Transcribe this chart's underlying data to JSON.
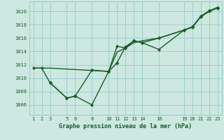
{
  "bg_color": "#cce8e0",
  "grid_color": "#99cccc",
  "line_color": "#1a5c2a",
  "xlim": [
    0.5,
    23.5
  ],
  "ylim": [
    1004.5,
    1021.5
  ],
  "yticks": [
    1006,
    1008,
    1010,
    1012,
    1014,
    1016,
    1018,
    1020
  ],
  "x_ticks": [
    1,
    2,
    3,
    5,
    6,
    8,
    10,
    11,
    12,
    13,
    14,
    16,
    19,
    20,
    21,
    22,
    23
  ],
  "xlabel": "Graphe pression niveau de la mer (hPa)",
  "series": [
    {
      "x": [
        1,
        3,
        10,
        11,
        12,
        13,
        14,
        16,
        19,
        20,
        21,
        22,
        23
      ],
      "y": [
        1011.5,
        1011.5,
        1011.0,
        1013.9,
        1014.5,
        1015.3,
        1015.6,
        1016.0,
        1017.2,
        1017.7,
        1019.2,
        1020.0,
        1020.6
      ],
      "marker": null,
      "markersize": 0,
      "linewidth": 1.0
    },
    {
      "x": [
        1,
        2,
        3,
        5,
        6,
        8,
        10,
        11,
        12,
        13,
        14,
        16,
        19,
        20,
        21,
        22,
        23
      ],
      "y": [
        1011.5,
        1011.5,
        1009.3,
        1007.0,
        1007.3,
        1006.0,
        1011.0,
        1014.8,
        1014.5,
        1015.6,
        1015.3,
        1014.3,
        1017.2,
        1017.6,
        1019.2,
        1020.0,
        1020.5
      ],
      "marker": "o",
      "markersize": 2.5,
      "linewidth": 1.0
    },
    {
      "x": [
        3,
        5,
        6,
        8,
        10,
        11,
        12,
        13,
        14,
        16,
        19,
        20,
        21,
        22,
        23
      ],
      "y": [
        1009.3,
        1007.0,
        1007.3,
        1011.2,
        1011.0,
        1012.3,
        1014.7,
        1015.6,
        1015.3,
        1016.0,
        1017.2,
        1017.7,
        1019.3,
        1020.1,
        1020.6
      ],
      "marker": "D",
      "markersize": 2.5,
      "linewidth": 1.0
    }
  ]
}
